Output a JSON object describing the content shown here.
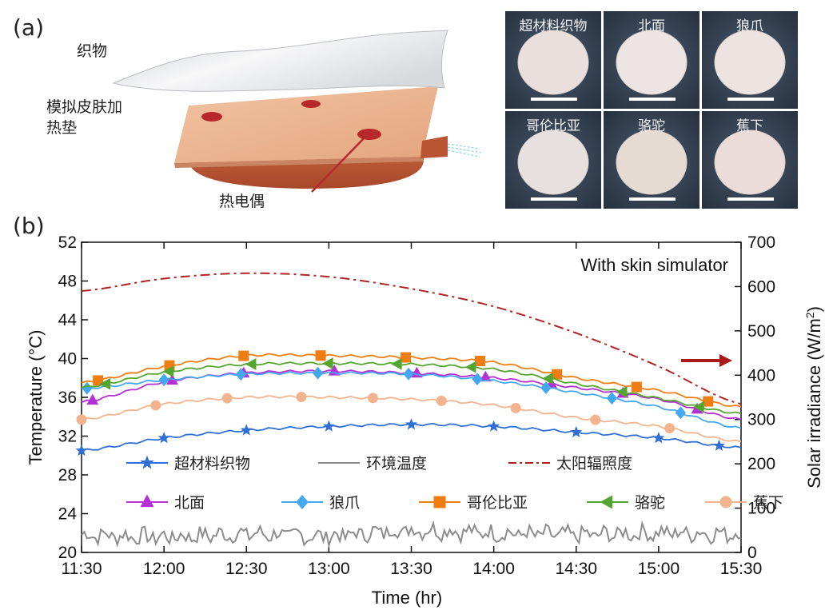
{
  "panel_a": {
    "label": "(a)",
    "callouts": {
      "fabric": "织物",
      "heater_line1": "模拟皮肤加",
      "heater_line2": "热垫",
      "thermocouple": "热电偶"
    },
    "photos": [
      {
        "label": "超材料织物",
        "fabric_color": "#e9dfdc"
      },
      {
        "label": "北面",
        "fabric_color": "#ece5e4"
      },
      {
        "label": "狼爪",
        "fabric_color": "#ede4e2"
      },
      {
        "label": "哥伦比亚",
        "fabric_color": "#e6e1df"
      },
      {
        "label": "骆驼",
        "fabric_color": "#e6dbd3"
      },
      {
        "label": "蕉下",
        "fabric_color": "#ecdcd9"
      }
    ]
  },
  "panel_b": {
    "label": "(b)",
    "annotation": "With skin simulator"
  },
  "chart_data": {
    "type": "line",
    "xlabel": "Time (hr)",
    "ylabel_left": "Temperature (°C)",
    "ylabel_right_main": "Solar irradiance (W/m",
    "ylabel_right_sup": "2",
    "ylabel_right_end": ")",
    "xlim": [
      0,
      240
    ],
    "x_ticks": [
      {
        "v": 0,
        "label": "11:30"
      },
      {
        "v": 30,
        "label": "12:00"
      },
      {
        "v": 60,
        "label": "12:30"
      },
      {
        "v": 90,
        "label": "13:00"
      },
      {
        "v": 120,
        "label": "13:30"
      },
      {
        "v": 150,
        "label": "14:00"
      },
      {
        "v": 180,
        "label": "14:30"
      },
      {
        "v": 210,
        "label": "15:00"
      },
      {
        "v": 240,
        "label": "15:30"
      }
    ],
    "ylim_left": [
      20,
      52
    ],
    "y_ticks_left": [
      20,
      24,
      28,
      32,
      36,
      40,
      44,
      48,
      52
    ],
    "ylim_right": [
      0,
      700
    ],
    "y_ticks_right": [
      0,
      100,
      200,
      300,
      400,
      500,
      600,
      700
    ],
    "series": [
      {
        "name": "超材料织物",
        "color": "#2f6fd6",
        "marker": "star",
        "axis": "left",
        "x": [
          0,
          30,
          60,
          90,
          120,
          150,
          180,
          210,
          240
        ],
        "y": [
          30.5,
          31.8,
          32.6,
          33.0,
          33.2,
          33.0,
          32.4,
          31.8,
          30.8
        ]
      },
      {
        "name": "环境温度",
        "color": "#8c8c8c",
        "marker": "none",
        "axis": "left",
        "noisy": true,
        "x": [
          0,
          30,
          60,
          90,
          120,
          150,
          180,
          210,
          240
        ],
        "y": [
          21.8,
          21.6,
          21.9,
          21.7,
          22.3,
          22.0,
          21.8,
          22.0,
          21.9
        ]
      },
      {
        "name": "太阳辐照度",
        "color": "#b22222",
        "marker": "none",
        "axis": "right",
        "dash": true,
        "x": [
          0,
          30,
          60,
          90,
          120,
          150,
          180,
          210,
          240
        ],
        "y": [
          590,
          618,
          630,
          622,
          595,
          555,
          495,
          420,
          335
        ]
      },
      {
        "name": "北面",
        "color": "#b62fd6",
        "marker": "triangle",
        "axis": "left",
        "x": [
          0,
          30,
          60,
          90,
          120,
          150,
          180,
          210,
          240
        ],
        "y": [
          35.5,
          37.6,
          38.5,
          38.7,
          38.5,
          38.0,
          37.0,
          35.8,
          33.7
        ]
      },
      {
        "name": "狼爪",
        "color": "#44a8f0",
        "marker": "diamond",
        "axis": "left",
        "x": [
          0,
          30,
          60,
          90,
          120,
          150,
          180,
          210,
          240
        ],
        "y": [
          36.9,
          37.8,
          38.4,
          38.5,
          38.4,
          37.7,
          36.5,
          35.0,
          32.8
        ]
      },
      {
        "name": "哥伦比亚",
        "color": "#f07d12",
        "marker": "square",
        "axis": "left",
        "x": [
          0,
          30,
          60,
          90,
          120,
          150,
          180,
          210,
          240
        ],
        "y": [
          37.5,
          39.2,
          40.3,
          40.3,
          40.1,
          39.6,
          38.0,
          36.7,
          35.0
        ]
      },
      {
        "name": "骆驼",
        "color": "#55a630",
        "marker": "triangle-left",
        "axis": "left",
        "x": [
          0,
          30,
          60,
          90,
          120,
          150,
          180,
          210,
          240
        ],
        "y": [
          37.0,
          38.6,
          39.4,
          39.5,
          39.4,
          38.9,
          37.4,
          35.9,
          34.3
        ]
      },
      {
        "name": "蕉下",
        "color": "#f2b48e",
        "marker": "circle",
        "axis": "left",
        "x": [
          0,
          30,
          60,
          90,
          120,
          150,
          180,
          210,
          240
        ],
        "y": [
          33.7,
          35.3,
          36.0,
          36.0,
          35.8,
          35.2,
          33.9,
          33.0,
          31.4
        ]
      }
    ],
    "legend_placement": "bottom-center",
    "arrow_points_to": "right axis"
  }
}
